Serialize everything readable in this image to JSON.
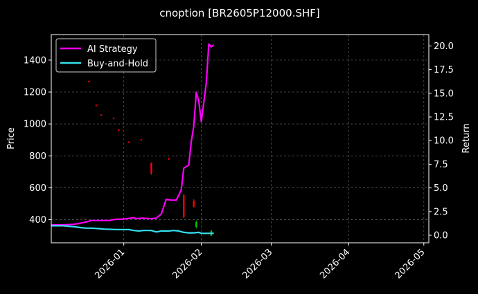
{
  "chart_data": {
    "type": "line",
    "title": "cnoption [BR2605P12000.SHF]",
    "ylabel_left": "Price",
    "ylabel_right": "Return",
    "xlabel": "",
    "grid": true,
    "legend_position": "top-left",
    "x_range": [
      "2025-12-03",
      "2026-05-03"
    ],
    "ylim_left": [
      255,
      1560
    ],
    "ylim_right": [
      -0.8,
      21.2
    ],
    "x_ticks": [
      "2026-01",
      "2026-02",
      "2026-03",
      "2026-04",
      "2026-05"
    ],
    "y_ticks_left": [
      400,
      600,
      800,
      1000,
      1200,
      1400
    ],
    "y_ticks_right": [
      0.0,
      2.5,
      5.0,
      7.5,
      10.0,
      12.5,
      15.0,
      17.5,
      20.0
    ],
    "y_tick_labels_right": [
      "0.0",
      "2.5",
      "5.0",
      "7.5",
      "10.0",
      "12.5",
      "15.0",
      "17.5",
      "20.0"
    ],
    "colors": {
      "background": "#000000",
      "grid": "#555555",
      "ai_strategy": "#ff00ff",
      "buy_and_hold": "#33e0f0",
      "candle_up": "#00cc00",
      "candle_down": "#ff0000"
    },
    "series": [
      {
        "name": "AI Strategy",
        "axis": "right",
        "color": "#ff00ff",
        "points": [
          [
            "2025-12-03",
            1.1
          ],
          [
            "2025-12-08",
            1.1
          ],
          [
            "2025-12-12",
            1.15
          ],
          [
            "2025-12-15",
            1.3
          ],
          [
            "2025-12-17",
            1.4
          ],
          [
            "2025-12-19",
            1.55
          ],
          [
            "2025-12-22",
            1.55
          ],
          [
            "2025-12-26",
            1.55
          ],
          [
            "2025-12-29",
            1.7
          ],
          [
            "2025-12-31",
            1.7
          ],
          [
            "2026-01-02",
            1.75
          ],
          [
            "2026-01-05",
            1.85
          ],
          [
            "2026-01-06",
            1.75
          ],
          [
            "2026-01-08",
            1.8
          ],
          [
            "2026-01-12",
            1.75
          ],
          [
            "2026-01-14",
            1.8
          ],
          [
            "2026-01-16",
            2.25
          ],
          [
            "2026-01-18",
            3.8
          ],
          [
            "2026-01-20",
            3.7
          ],
          [
            "2026-01-22",
            3.7
          ],
          [
            "2026-01-24",
            4.8
          ],
          [
            "2026-01-25",
            7.1
          ],
          [
            "2026-01-27",
            7.4
          ],
          [
            "2026-01-28",
            9.9
          ],
          [
            "2026-01-29",
            11.5
          ],
          [
            "2026-01-30",
            15.1
          ],
          [
            "2026-01-31",
            14.2
          ],
          [
            "2026-02-01",
            12.0
          ],
          [
            "2026-02-03",
            16.1
          ],
          [
            "2026-02-04",
            20.2
          ],
          [
            "2026-02-05",
            19.9
          ],
          [
            "2026-02-06",
            20.1
          ]
        ]
      },
      {
        "name": "Buy-and-Hold",
        "axis": "right",
        "color": "#33e0f0",
        "points": [
          [
            "2025-12-03",
            1.0
          ],
          [
            "2025-12-08",
            1.0
          ],
          [
            "2025-12-10",
            0.95
          ],
          [
            "2025-12-12",
            0.9
          ],
          [
            "2025-12-15",
            0.8
          ],
          [
            "2025-12-17",
            0.75
          ],
          [
            "2025-12-19",
            0.75
          ],
          [
            "2025-12-22",
            0.7
          ],
          [
            "2025-12-24",
            0.65
          ],
          [
            "2025-12-29",
            0.6
          ],
          [
            "2025-12-31",
            0.6
          ],
          [
            "2026-01-03",
            0.6
          ],
          [
            "2026-01-05",
            0.5
          ],
          [
            "2026-01-07",
            0.45
          ],
          [
            "2026-01-09",
            0.5
          ],
          [
            "2026-01-12",
            0.5
          ],
          [
            "2026-01-14",
            0.35
          ],
          [
            "2026-01-16",
            0.45
          ],
          [
            "2026-01-19",
            0.45
          ],
          [
            "2026-01-21",
            0.5
          ],
          [
            "2026-01-23",
            0.45
          ],
          [
            "2026-01-25",
            0.3
          ],
          [
            "2026-01-27",
            0.25
          ],
          [
            "2026-01-29",
            0.25
          ],
          [
            "2026-01-31",
            0.3
          ],
          [
            "2026-02-01",
            0.2
          ],
          [
            "2026-02-03",
            0.2
          ],
          [
            "2026-02-05",
            0.2
          ],
          [
            "2026-02-06",
            0.2
          ]
        ]
      }
    ],
    "candles": [
      {
        "date": "2025-12-18",
        "open": 1270,
        "close": 1262,
        "high": 1270,
        "low": 1260
      },
      {
        "date": "2025-12-21",
        "open": 1120,
        "close": 1112,
        "high": 1120,
        "low": 1110
      },
      {
        "date": "2025-12-23",
        "open": 1060,
        "close": 1052,
        "high": 1060,
        "low": 1050
      },
      {
        "date": "2025-12-28",
        "open": 1040,
        "close": 1033,
        "high": 1040,
        "low": 1030
      },
      {
        "date": "2025-12-30",
        "open": 965,
        "close": 958,
        "high": 965,
        "low": 955
      },
      {
        "date": "2026-01-03",
        "open": 890,
        "close": 882,
        "high": 890,
        "low": 880
      },
      {
        "date": "2026-01-08",
        "open": 905,
        "close": 898,
        "high": 905,
        "low": 895
      },
      {
        "date": "2026-01-12",
        "open": 755,
        "close": 690,
        "high": 760,
        "low": 680
      },
      {
        "date": "2026-01-19",
        "open": 785,
        "close": 778,
        "high": 785,
        "low": 775
      },
      {
        "date": "2026-01-25",
        "open": 555,
        "close": 415,
        "high": 560,
        "low": 410
      },
      {
        "date": "2026-01-29",
        "open": 520,
        "close": 480,
        "high": 530,
        "low": 478
      },
      {
        "date": "2026-01-30",
        "open": 355,
        "close": 385,
        "high": 395,
        "low": 345
      },
      {
        "date": "2026-02-05",
        "open": 300,
        "close": 330,
        "high": 335,
        "low": 298
      }
    ]
  }
}
